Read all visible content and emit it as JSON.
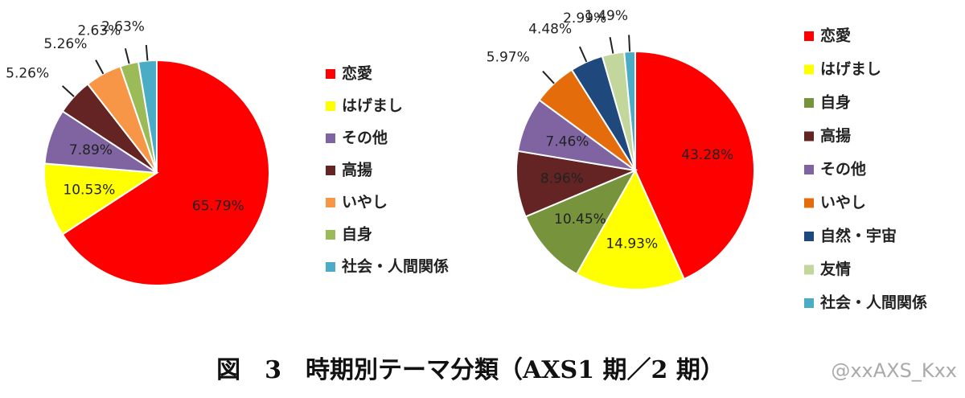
{
  "chart_data": [
    {
      "type": "pie",
      "categories": [
        "恋愛",
        "はげまし",
        "その他",
        "高揚",
        "いやし",
        "自身",
        "社会・人間関係"
      ],
      "values": [
        65.79,
        10.53,
        7.89,
        5.26,
        5.26,
        2.63,
        2.63
      ],
      "value_labels": [
        "65.79%",
        "10.53%",
        "7.89%",
        "5.26%",
        "5.26%",
        "2.63%",
        "2.63%"
      ],
      "colors": [
        "#ff0000",
        "#ffff00",
        "#8064a2",
        "#632423",
        "#f79646",
        "#9bbb59",
        "#4bacc6"
      ]
    },
    {
      "type": "pie",
      "categories": [
        "恋愛",
        "はげまし",
        "自身",
        "高揚",
        "その他",
        "いやし",
        "自然・宇宙",
        "友情",
        "社会・人間関係"
      ],
      "values": [
        43.28,
        14.93,
        10.45,
        8.96,
        7.46,
        5.97,
        4.48,
        2.99,
        1.49
      ],
      "value_labels": [
        "43.28%",
        "14.93%",
        "10.45%",
        "8.96%",
        "7.46%",
        "5.97%",
        "4.48%",
        "2.99%",
        "1.49%"
      ],
      "colors": [
        "#ff0000",
        "#ffff00",
        "#77933c",
        "#632423",
        "#8064a2",
        "#e46c0a",
        "#1f497d",
        "#c3d69b",
        "#4bacc6"
      ]
    }
  ],
  "caption": "図　3　時期別テーマ分類（AXS1 期／2 期）",
  "watermark": "@xxAXS_Kxx"
}
